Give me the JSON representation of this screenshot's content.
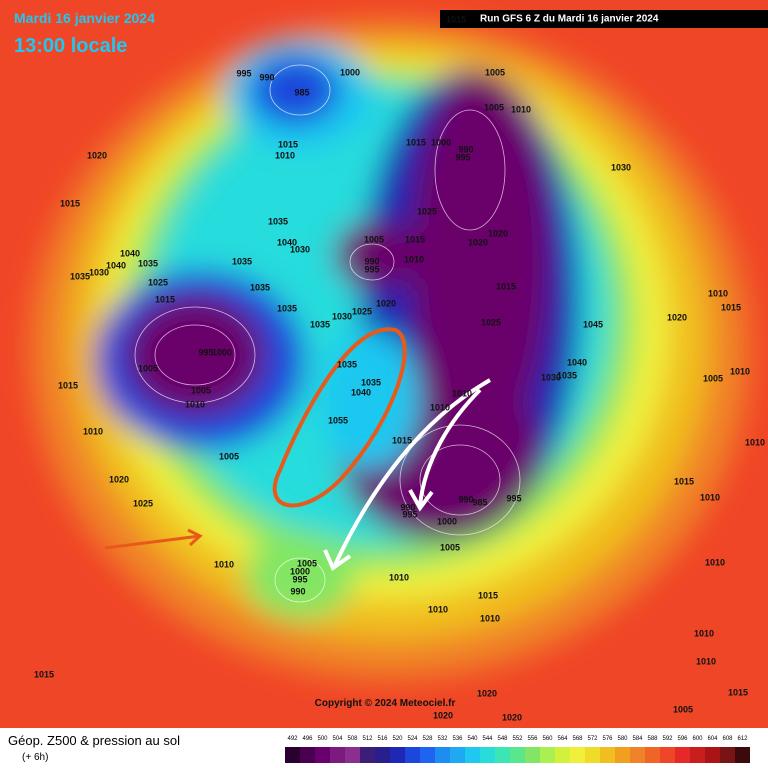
{
  "header": {
    "date": "Mardi 16 janvier 2024",
    "time": "13:00 locale",
    "top_label": 1015,
    "run": "Run GFS 6 Z du Mardi 16 janvier 2024"
  },
  "isobar_labels": [
    995,
    990,
    1000,
    985,
    1005,
    1005,
    1010,
    1020,
    1015,
    1010,
    1015,
    1000,
    990,
    995,
    1030,
    1015,
    1025,
    1035,
    1040,
    1030,
    1005,
    1015,
    1020,
    1020,
    1040,
    1035,
    1035,
    1040,
    1030,
    1035,
    990,
    995,
    1010,
    1025,
    1035,
    1015,
    1015,
    1035,
    1020,
    1025,
    1030,
    1035,
    1025,
    1045,
    1010,
    1020,
    1015,
    1000,
    995,
    1005,
    1035,
    1035,
    1040,
    1040,
    1035,
    1030,
    1005,
    1010,
    1015,
    1005,
    1010,
    1010,
    1010,
    1055,
    1010,
    1015,
    1010,
    1005,
    1020,
    1015,
    1010,
    1025,
    995,
    990,
    985,
    990,
    995,
    1000,
    1005,
    1010,
    1005,
    1000,
    995,
    990,
    1010,
    1015,
    1010,
    1010,
    1010,
    1015,
    1010,
    1010,
    1020,
    1015,
    1020,
    1020,
    1005
  ],
  "copyright": "Copyright © 2024 Meteociel.fr",
  "legend": {
    "title": "Géop. Z500 & pression au sol",
    "subtitle": "(+ 6h)",
    "scale_values": [
      492,
      496,
      500,
      504,
      508,
      512,
      516,
      520,
      524,
      528,
      532,
      536,
      540,
      544,
      548,
      552,
      556,
      560,
      564,
      568,
      572,
      576,
      580,
      584,
      588,
      592,
      596,
      600,
      604,
      608,
      612
    ],
    "scale_colors": [
      "#2a0030",
      "#4a0050",
      "#6a006b",
      "#7d1a80",
      "#8a2f8f",
      "#3c1e78",
      "#281e8c",
      "#1e28b4",
      "#1e46dc",
      "#1e64f0",
      "#1e8cf0",
      "#1eaaf0",
      "#1ec8f0",
      "#28dcdc",
      "#3ce6b4",
      "#5ae68c",
      "#82e664",
      "#aaf050",
      "#d2f03c",
      "#f0f03c",
      "#f0dc28",
      "#f0be1e",
      "#f0a01e",
      "#f08228",
      "#f06428",
      "#f04628",
      "#e62828",
      "#c81e1e",
      "#aa1414",
      "#781414",
      "#3c0a0a"
    ]
  }
}
